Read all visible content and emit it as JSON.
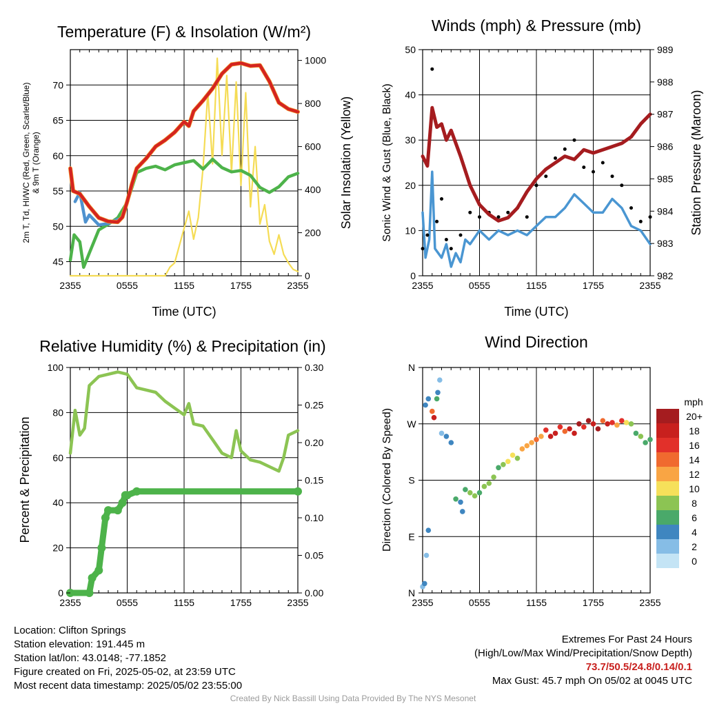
{
  "panels": {
    "temp": {
      "title": "Temperature (F) & Insolation (W/m²)",
      "ylabel_left_1": "2m T, Td, HI/WC (Red, Green, Scarlet/Blue)",
      "ylabel_left_2": "& 9m T (Orange)",
      "ylabel_right": "Solar Insolation (Yellow)",
      "xlabel": "Time (UTC)"
    },
    "wind": {
      "title": "Winds (mph) & Pressure (mb)",
      "ylabel_left": "Sonic Wind & Gust (Blue, Black)",
      "ylabel_right": "Station Pressure (Maroon)",
      "xlabel": "Time (UTC)"
    },
    "rh": {
      "title": "Relative Humidity (%) & Precipitation (in)",
      "ylabel_left": "Percent & Precipitation"
    },
    "dir": {
      "title": "Wind Direction",
      "ylabel_left": "Direction (Colored By Speed)",
      "legend_title": "mph",
      "legend_labels": [
        "20+",
        "18",
        "16",
        "14",
        "12",
        "10",
        "8",
        "6",
        "4",
        "2",
        "0"
      ],
      "legend_colors": [
        "#a51c1f",
        "#c8201e",
        "#e2302a",
        "#f06a2f",
        "#f9a544",
        "#f6e05a",
        "#8cc453",
        "#4aa96a",
        "#3f86c0",
        "#86bde6",
        "#c4e4f5"
      ]
    }
  },
  "footer": {
    "location": "Location: Clifton Springs",
    "elevation": "Station elevation: 191.445 m",
    "latlon": "Station lat/lon: 43.0148; -77.1852",
    "created": "Figure created on Fri, 2025-05-02, at 23:59 UTC",
    "recent": "Most recent data timestamp: 2025/05/02 23:55:00",
    "extremes_title": "Extremes For Past 24 Hours",
    "extremes_sub": "(High/Low/Max Wind/Precipitation/Snow Depth)",
    "extremes_values": "73.7/50.5/24.8/0.14/0.1",
    "max_gust": "Max Gust: 45.7 mph On 05/02 at 0045 UTC",
    "credit": "Created By Nick Bassill Using Data Provided By The NYS Mesonet"
  },
  "chart_data": [
    {
      "type": "line",
      "title": "Temperature (F) & Insolation (W/m²)",
      "xlabel": "Time (UTC)",
      "x_ticks": [
        "2355",
        "0555",
        "1155",
        "1755",
        "2355"
      ],
      "ylim": [
        43,
        75
      ],
      "y_ticks": [
        45,
        50,
        55,
        60,
        65,
        70
      ],
      "y2lim": [
        0,
        1050
      ],
      "y2_ticks": [
        0,
        200,
        400,
        600,
        800,
        1000
      ],
      "colors": {
        "temp": "#d42420",
        "temp9m": "#f39a2c",
        "dewpoint": "#4db34a",
        "windchill": "#4e92cf",
        "solar": "#f5dc55"
      },
      "temp": [
        [
          0,
          58.2
        ],
        [
          0.3,
          55
        ],
        [
          1,
          54.6
        ],
        [
          2,
          52.8
        ],
        [
          3,
          51.2
        ],
        [
          4,
          50.7
        ],
        [
          5,
          50.6
        ],
        [
          5.5,
          51.3
        ],
        [
          6,
          53.5
        ],
        [
          6.5,
          56
        ],
        [
          7,
          58.2
        ],
        [
          8,
          59.6
        ],
        [
          9,
          61.3
        ],
        [
          10,
          62.2
        ],
        [
          11,
          63.3
        ],
        [
          12,
          64.8
        ],
        [
          12.5,
          64.2
        ],
        [
          13,
          66.3
        ],
        [
          14,
          67.8
        ],
        [
          15,
          69.5
        ],
        [
          16,
          71.6
        ],
        [
          17,
          72.9
        ],
        [
          18,
          73.1
        ],
        [
          19,
          72.7
        ],
        [
          20,
          72.8
        ],
        [
          21,
          70.5
        ],
        [
          22,
          67.5
        ],
        [
          23,
          66.6
        ],
        [
          24,
          66.2
        ]
      ],
      "dewpoint": [
        [
          0,
          45.2
        ],
        [
          0.4,
          48.8
        ],
        [
          1,
          47.8
        ],
        [
          1.4,
          44.2
        ],
        [
          2,
          46.2
        ],
        [
          3,
          49.5
        ],
        [
          4,
          50.3
        ],
        [
          5,
          51.2
        ],
        [
          6,
          53.4
        ],
        [
          7,
          57.6
        ],
        [
          8,
          58.2
        ],
        [
          9,
          58.5
        ],
        [
          10,
          58.0
        ],
        [
          11,
          58.7
        ],
        [
          12,
          59.0
        ],
        [
          13,
          59.3
        ],
        [
          14,
          58.1
        ],
        [
          15,
          59.5
        ],
        [
          16,
          58.3
        ],
        [
          17,
          57.7
        ],
        [
          18,
          57.9
        ],
        [
          19,
          57.2
        ],
        [
          20,
          55.5
        ],
        [
          21,
          54.8
        ],
        [
          22,
          55.6
        ],
        [
          23,
          57.0
        ],
        [
          24,
          57.5
        ]
      ],
      "windchill": [
        [
          0.5,
          53.5
        ],
        [
          1,
          54.8
        ],
        [
          1.6,
          50.6
        ],
        [
          2,
          51.6
        ],
        [
          3,
          50.2
        ],
        [
          4,
          50.4
        ],
        [
          5,
          51.0
        ]
      ],
      "solar": [
        [
          0,
          0
        ],
        [
          10,
          0
        ],
        [
          10.5,
          40
        ],
        [
          11,
          60
        ],
        [
          11.5,
          140
        ],
        [
          12,
          220
        ],
        [
          12.5,
          300
        ],
        [
          13,
          170
        ],
        [
          13.5,
          270
        ],
        [
          14,
          500
        ],
        [
          14.5,
          850
        ],
        [
          15,
          520
        ],
        [
          15.5,
          1010
        ],
        [
          16,
          560
        ],
        [
          16.5,
          930
        ],
        [
          17,
          480
        ],
        [
          17.5,
          900
        ],
        [
          18,
          420
        ],
        [
          18.5,
          850
        ],
        [
          19,
          320
        ],
        [
          19.5,
          600
        ],
        [
          20,
          240
        ],
        [
          20.5,
          330
        ],
        [
          21,
          160
        ],
        [
          21.5,
          100
        ],
        [
          22,
          190
        ],
        [
          22.5,
          100
        ],
        [
          23,
          60
        ],
        [
          23.5,
          30
        ],
        [
          24,
          20
        ]
      ]
    },
    {
      "type": "line",
      "title": "Winds (mph) & Pressure (mb)",
      "xlabel": "Time (UTC)",
      "x_ticks": [
        "2355",
        "0555",
        "1155",
        "1755",
        "2355"
      ],
      "ylim": [
        0,
        50
      ],
      "y_ticks": [
        0,
        10,
        20,
        30,
        40,
        50
      ],
      "y2lim": [
        982,
        989
      ],
      "y2_ticks": [
        982,
        983,
        984,
        985,
        986,
        987,
        988,
        989
      ],
      "colors": {
        "wind": "#4a96d2",
        "gust": "#000000",
        "pressure": "#a51c1f"
      },
      "wind": [
        [
          0,
          14
        ],
        [
          0.3,
          4
        ],
        [
          0.7,
          8
        ],
        [
          1,
          23
        ],
        [
          1.3,
          6
        ],
        [
          2,
          4
        ],
        [
          2.5,
          7
        ],
        [
          3,
          2
        ],
        [
          3.5,
          5
        ],
        [
          4,
          3
        ],
        [
          4.5,
          8
        ],
        [
          5,
          7
        ],
        [
          6,
          10
        ],
        [
          7,
          8
        ],
        [
          8,
          10
        ],
        [
          9,
          9
        ],
        [
          10,
          10
        ],
        [
          11,
          9
        ],
        [
          12,
          11
        ],
        [
          13,
          13
        ],
        [
          14,
          13
        ],
        [
          15,
          15
        ],
        [
          16,
          18
        ],
        [
          17,
          16
        ],
        [
          18,
          14
        ],
        [
          19,
          14
        ],
        [
          20,
          17
        ],
        [
          21,
          15
        ],
        [
          22,
          11
        ],
        [
          23,
          10
        ],
        [
          24,
          7
        ]
      ],
      "gust": [
        [
          0,
          6
        ],
        [
          0.5,
          9
        ],
        [
          1,
          45.7
        ],
        [
          1.5,
          12
        ],
        [
          2,
          17
        ],
        [
          2.5,
          8
        ],
        [
          3,
          6
        ],
        [
          4,
          9
        ],
        [
          5,
          14
        ],
        [
          6,
          13
        ],
        [
          7,
          14
        ],
        [
          8,
          13
        ],
        [
          9,
          14
        ],
        [
          10,
          15
        ],
        [
          11,
          13
        ],
        [
          12,
          20
        ],
        [
          13,
          22
        ],
        [
          14,
          26
        ],
        [
          15,
          28
        ],
        [
          16,
          30
        ],
        [
          17,
          24
        ],
        [
          18,
          23
        ],
        [
          19,
          25
        ],
        [
          20,
          22
        ],
        [
          21,
          20
        ],
        [
          22,
          15
        ],
        [
          23,
          12
        ],
        [
          24,
          13
        ]
      ],
      "pressure": [
        [
          0,
          985.7
        ],
        [
          0.5,
          985.4
        ],
        [
          1,
          987.2
        ],
        [
          1.5,
          986.6
        ],
        [
          2,
          986.7
        ],
        [
          2.5,
          986.2
        ],
        [
          3,
          986.5
        ],
        [
          4,
          985.7
        ],
        [
          5,
          984.8
        ],
        [
          6,
          984.2
        ],
        [
          7,
          983.9
        ],
        [
          8,
          983.7
        ],
        [
          9,
          983.8
        ],
        [
          10,
          984.1
        ],
        [
          11,
          984.6
        ],
        [
          12,
          985.0
        ],
        [
          13,
          985.3
        ],
        [
          14,
          985.5
        ],
        [
          15,
          985.7
        ],
        [
          16,
          985.6
        ],
        [
          17,
          985.9
        ],
        [
          18,
          985.8
        ],
        [
          19,
          985.9
        ],
        [
          20,
          986.0
        ],
        [
          21,
          986.1
        ],
        [
          22,
          986.3
        ],
        [
          23,
          986.7
        ],
        [
          24,
          987.0
        ]
      ]
    },
    {
      "type": "line",
      "title": "Relative Humidity (%) & Precipitation (in)",
      "ylabel": "Percent & Precipitation",
      "x_ticks": [
        "2355",
        "0555",
        "1155",
        "1755",
        "2355"
      ],
      "ylim": [
        0,
        100
      ],
      "y_ticks": [
        0,
        20,
        40,
        60,
        80,
        100
      ],
      "y2lim": [
        0,
        0.3
      ],
      "y2_ticks": [
        "0.00",
        "0.05",
        "0.10",
        "0.15",
        "0.20",
        "0.25",
        "0.30"
      ],
      "colors": {
        "rh": "#8cc453",
        "precip": "#4db34a"
      },
      "rh": [
        [
          0,
          62
        ],
        [
          0.5,
          81
        ],
        [
          1,
          70
        ],
        [
          1.5,
          73
        ],
        [
          2,
          92
        ],
        [
          3,
          96
        ],
        [
          4,
          97
        ],
        [
          5,
          98
        ],
        [
          6,
          97
        ],
        [
          7,
          91
        ],
        [
          8,
          90
        ],
        [
          9,
          89
        ],
        [
          10,
          85
        ],
        [
          11,
          82
        ],
        [
          12,
          79
        ],
        [
          12.5,
          84
        ],
        [
          13,
          75
        ],
        [
          14,
          74
        ],
        [
          15,
          68
        ],
        [
          16,
          62
        ],
        [
          17,
          60
        ],
        [
          17.5,
          72
        ],
        [
          18,
          63
        ],
        [
          19,
          59
        ],
        [
          20,
          58
        ],
        [
          21,
          56
        ],
        [
          22,
          54
        ],
        [
          22.5,
          60
        ],
        [
          23,
          70
        ],
        [
          24,
          72
        ]
      ],
      "precip": [
        [
          0,
          0
        ],
        [
          2,
          0
        ],
        [
          2.3,
          0.02
        ],
        [
          3,
          0.03
        ],
        [
          3.3,
          0.06
        ],
        [
          3.7,
          0.1
        ],
        [
          4,
          0.11
        ],
        [
          5,
          0.11
        ],
        [
          5.5,
          0.12
        ],
        [
          5.8,
          0.13
        ],
        [
          6,
          0.13
        ],
        [
          7,
          0.135
        ],
        [
          24,
          0.135
        ]
      ]
    },
    {
      "type": "scatter",
      "title": "Wind Direction",
      "ylabel": "Direction (Colored By Speed)",
      "x_ticks": [
        "2355",
        "0555",
        "1155",
        "1755",
        "2355"
      ],
      "y_ticks": [
        "N",
        "E",
        "S",
        "W",
        "N"
      ],
      "ylim": [
        0,
        360
      ],
      "color_scale_mph": [
        0,
        20
      ],
      "points": [
        [
          0,
          10,
          1
        ],
        [
          0.2,
          15,
          3
        ],
        [
          0.4,
          60,
          2
        ],
        [
          0.6,
          100,
          3
        ],
        [
          0.3,
          300,
          4
        ],
        [
          0.6,
          310,
          3
        ],
        [
          1,
          290,
          14
        ],
        [
          1.2,
          280,
          18
        ],
        [
          1.5,
          310,
          6
        ],
        [
          1.8,
          340,
          2
        ],
        [
          1.6,
          320,
          4
        ],
        [
          2,
          255,
          2
        ],
        [
          2.5,
          250,
          3
        ],
        [
          3,
          240,
          4
        ],
        [
          3.5,
          150,
          5
        ],
        [
          4,
          145,
          4
        ],
        [
          4.2,
          130,
          3
        ],
        [
          4.5,
          165,
          6
        ],
        [
          5,
          160,
          8
        ],
        [
          5.5,
          155,
          8
        ],
        [
          6,
          160,
          6
        ],
        [
          6.5,
          170,
          7
        ],
        [
          7,
          175,
          8
        ],
        [
          7.5,
          185,
          8
        ],
        [
          8,
          200,
          6
        ],
        [
          8.5,
          205,
          8
        ],
        [
          9,
          210,
          10
        ],
        [
          9.5,
          220,
          9
        ],
        [
          10,
          215,
          8
        ],
        [
          10.5,
          230,
          12
        ],
        [
          11,
          235,
          11
        ],
        [
          11.5,
          240,
          11
        ],
        [
          12,
          245,
          13
        ],
        [
          12.5,
          250,
          12
        ],
        [
          13,
          260,
          16
        ],
        [
          13.5,
          250,
          18
        ],
        [
          14,
          255,
          17
        ],
        [
          14.5,
          265,
          15
        ],
        [
          15,
          258,
          14
        ],
        [
          15.5,
          262,
          18
        ],
        [
          16,
          255,
          17
        ],
        [
          16.5,
          270,
          20
        ],
        [
          17,
          265,
          16
        ],
        [
          17.5,
          275,
          19
        ],
        [
          18,
          270,
          17
        ],
        [
          18.5,
          262,
          20
        ],
        [
          19,
          275,
          14
        ],
        [
          19.5,
          270,
          18
        ],
        [
          20,
          272,
          16
        ],
        [
          20.5,
          268,
          12
        ],
        [
          21,
          275,
          15
        ],
        [
          21.5,
          272,
          10
        ],
        [
          22,
          270,
          8
        ],
        [
          22.5,
          255,
          6
        ],
        [
          23,
          250,
          8
        ],
        [
          23.5,
          240,
          6
        ],
        [
          24,
          245,
          5
        ]
      ]
    }
  ]
}
